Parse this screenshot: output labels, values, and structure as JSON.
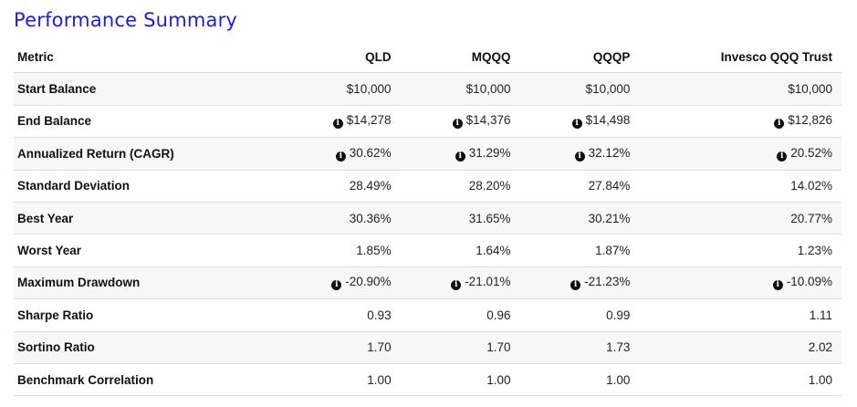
{
  "title": "Performance Summary",
  "columns": [
    "Metric",
    "QLD",
    "MQQQ",
    "QQQP",
    "Invesco QQQ Trust"
  ],
  "info_icon": "info-circle-icon",
  "rows": [
    {
      "metric": "Start Balance",
      "values": [
        "$10,000",
        "$10,000",
        "$10,000",
        "$10,000"
      ],
      "info": false
    },
    {
      "metric": "End Balance",
      "values": [
        "$14,278",
        "$14,376",
        "$14,498",
        "$12,826"
      ],
      "info": true
    },
    {
      "metric": "Annualized Return (CAGR)",
      "values": [
        "30.62%",
        "31.29%",
        "32.12%",
        "20.52%"
      ],
      "info": true
    },
    {
      "metric": "Standard Deviation",
      "values": [
        "28.49%",
        "28.20%",
        "27.84%",
        "14.02%"
      ],
      "info": false
    },
    {
      "metric": "Best Year",
      "values": [
        "30.36%",
        "31.65%",
        "30.21%",
        "20.77%"
      ],
      "info": false
    },
    {
      "metric": "Worst Year",
      "values": [
        "1.85%",
        "1.64%",
        "1.87%",
        "1.23%"
      ],
      "info": false
    },
    {
      "metric": "Maximum Drawdown",
      "values": [
        "-20.90%",
        "-21.01%",
        "-21.23%",
        "-10.09%"
      ],
      "info": true
    },
    {
      "metric": "Sharpe Ratio",
      "values": [
        "0.93",
        "0.96",
        "0.99",
        "1.11"
      ],
      "info": false
    },
    {
      "metric": "Sortino Ratio",
      "values": [
        "1.70",
        "1.70",
        "1.73",
        "2.02"
      ],
      "info": false
    },
    {
      "metric": "Benchmark Correlation",
      "values": [
        "1.00",
        "1.00",
        "1.00",
        "1.00"
      ],
      "info": false
    }
  ]
}
